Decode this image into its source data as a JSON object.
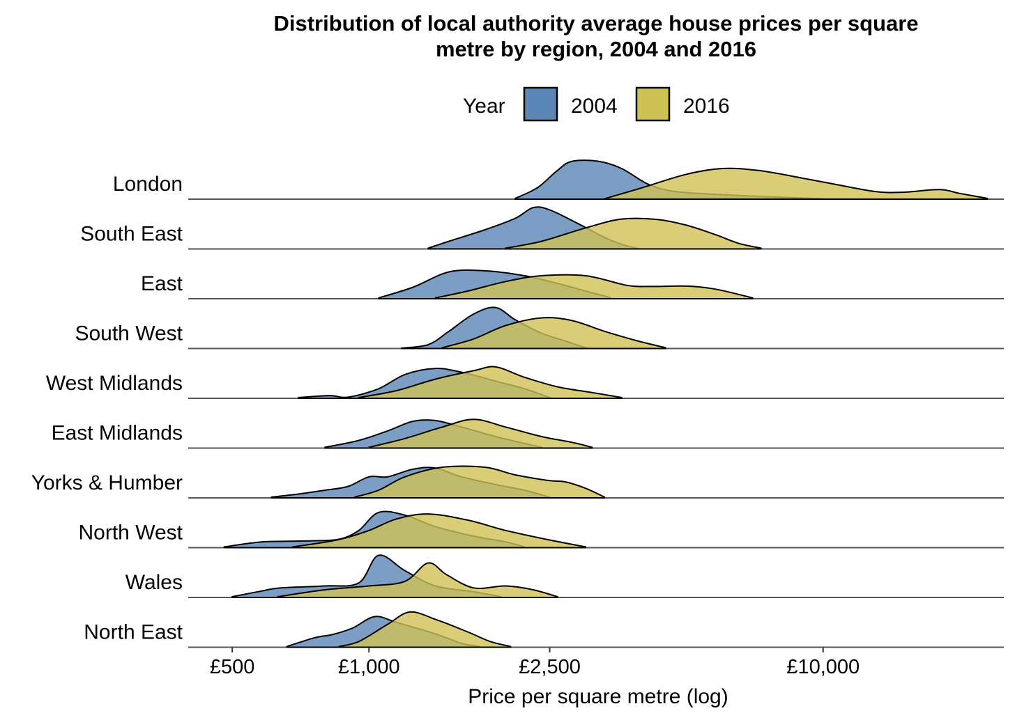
{
  "chart_data": {
    "type": "ridgeline",
    "title": "Distribution of local authority average house prices per square",
    "title_line2": "metre by region, 2004 and 2016",
    "xlabel": "Price per square metre (log)",
    "ylabel": "",
    "x_scale": "log",
    "xlim": [
      400,
      25000
    ],
    "x_ticks": [
      {
        "value": 500,
        "label": "£500"
      },
      {
        "value": 1000,
        "label": "£1,000"
      },
      {
        "value": 2500,
        "label": "£2,500"
      },
      {
        "value": 10000,
        "label": "£10,000"
      }
    ],
    "grid": false,
    "legend": {
      "title": "Year",
      "position": "top",
      "entries": [
        {
          "label": "2004",
          "color": "#5b86b6"
        },
        {
          "label": "2016",
          "color": "#cfc255"
        }
      ]
    },
    "series": [
      {
        "name": "2004",
        "color": "#5b86b6"
      },
      {
        "name": "2016",
        "color": "#cfc255"
      }
    ],
    "categories": [
      "London",
      "South East",
      "East",
      "South West",
      "West Midlands",
      "East Midlands",
      "Yorks & Humber",
      "North West",
      "Wales",
      "North East"
    ],
    "ridges": [
      {
        "region": "London",
        "d2004": [
          [
            2100,
            0.02
          ],
          [
            2350,
            0.3
          ],
          [
            2600,
            0.75
          ],
          [
            2800,
            0.99
          ],
          [
            3200,
            0.99
          ],
          [
            3600,
            0.8
          ],
          [
            4100,
            0.4
          ],
          [
            4600,
            0.22
          ],
          [
            5300,
            0.15
          ],
          [
            7000,
            0.08
          ],
          [
            8500,
            0.04
          ],
          [
            10000,
            0.01
          ]
        ],
        "d2016": [
          [
            3300,
            0.01
          ],
          [
            4000,
            0.3
          ],
          [
            5000,
            0.65
          ],
          [
            6000,
            0.8
          ],
          [
            7200,
            0.75
          ],
          [
            9000,
            0.55
          ],
          [
            10500,
            0.4
          ],
          [
            13000,
            0.2
          ],
          [
            15000,
            0.18
          ],
          [
            18000,
            0.25
          ],
          [
            20000,
            0.15
          ],
          [
            23000,
            0.02
          ]
        ]
      },
      {
        "region": "South East",
        "d2004": [
          [
            1350,
            0.02
          ],
          [
            1500,
            0.2
          ],
          [
            1800,
            0.5
          ],
          [
            2100,
            0.8
          ],
          [
            2300,
            1.08
          ],
          [
            2500,
            1.02
          ],
          [
            2900,
            0.65
          ],
          [
            3300,
            0.3
          ],
          [
            3600,
            0.12
          ],
          [
            3900,
            0.02
          ]
        ],
        "d2016": [
          [
            2000,
            0.02
          ],
          [
            2400,
            0.2
          ],
          [
            3000,
            0.55
          ],
          [
            3600,
            0.78
          ],
          [
            4300,
            0.77
          ],
          [
            5000,
            0.62
          ],
          [
            5800,
            0.37
          ],
          [
            6500,
            0.15
          ],
          [
            7300,
            0.02
          ]
        ]
      },
      {
        "region": "East",
        "d2004": [
          [
            1050,
            0.02
          ],
          [
            1250,
            0.3
          ],
          [
            1500,
            0.7
          ],
          [
            1800,
            0.73
          ],
          [
            2200,
            0.6
          ],
          [
            2600,
            0.4
          ],
          [
            3000,
            0.2
          ],
          [
            3400,
            0.03
          ]
        ],
        "d2016": [
          [
            1400,
            0.02
          ],
          [
            1650,
            0.2
          ],
          [
            2000,
            0.45
          ],
          [
            2400,
            0.6
          ],
          [
            3000,
            0.6
          ],
          [
            3700,
            0.35
          ],
          [
            4200,
            0.32
          ],
          [
            5000,
            0.33
          ],
          [
            5800,
            0.25
          ],
          [
            7000,
            0.02
          ]
        ]
      },
      {
        "region": "South West",
        "d2004": [
          [
            1180,
            0.01
          ],
          [
            1350,
            0.1
          ],
          [
            1500,
            0.45
          ],
          [
            1700,
            0.9
          ],
          [
            1900,
            1.07
          ],
          [
            2100,
            0.75
          ],
          [
            2400,
            0.4
          ],
          [
            2700,
            0.2
          ],
          [
            3000,
            0.02
          ]
        ],
        "d2016": [
          [
            1450,
            0.02
          ],
          [
            1700,
            0.25
          ],
          [
            2000,
            0.6
          ],
          [
            2400,
            0.8
          ],
          [
            2800,
            0.73
          ],
          [
            3300,
            0.45
          ],
          [
            3900,
            0.2
          ],
          [
            4500,
            0.02
          ]
        ]
      },
      {
        "region": "West Midlands",
        "d2004": [
          [
            700,
            0.02
          ],
          [
            820,
            0.07
          ],
          [
            900,
            0.03
          ],
          [
            1050,
            0.25
          ],
          [
            1200,
            0.62
          ],
          [
            1400,
            0.78
          ],
          [
            1600,
            0.68
          ],
          [
            1900,
            0.45
          ],
          [
            2200,
            0.25
          ],
          [
            2500,
            0.02
          ]
        ],
        "d2016": [
          [
            950,
            0.02
          ],
          [
            1150,
            0.2
          ],
          [
            1400,
            0.5
          ],
          [
            1700,
            0.72
          ],
          [
            1900,
            0.82
          ],
          [
            2200,
            0.55
          ],
          [
            2600,
            0.3
          ],
          [
            3100,
            0.15
          ],
          [
            3600,
            0.02
          ]
        ]
      },
      {
        "region": "East Midlands",
        "d2004": [
          [
            800,
            0.02
          ],
          [
            950,
            0.2
          ],
          [
            1100,
            0.45
          ],
          [
            1250,
            0.7
          ],
          [
            1400,
            0.72
          ],
          [
            1600,
            0.55
          ],
          [
            1900,
            0.3
          ],
          [
            2150,
            0.15
          ],
          [
            2400,
            0.02
          ]
        ],
        "d2016": [
          [
            1000,
            0.02
          ],
          [
            1200,
            0.25
          ],
          [
            1450,
            0.55
          ],
          [
            1700,
            0.75
          ],
          [
            2000,
            0.55
          ],
          [
            2400,
            0.3
          ],
          [
            2800,
            0.15
          ],
          [
            3100,
            0.02
          ]
        ]
      },
      {
        "region": "Yorks & Humber",
        "d2004": [
          [
            610,
            0.02
          ],
          [
            700,
            0.1
          ],
          [
            800,
            0.2
          ],
          [
            900,
            0.3
          ],
          [
            1000,
            0.55
          ],
          [
            1100,
            0.55
          ],
          [
            1250,
            0.75
          ],
          [
            1400,
            0.78
          ],
          [
            1600,
            0.55
          ],
          [
            1900,
            0.35
          ],
          [
            2200,
            0.2
          ],
          [
            2500,
            0.02
          ]
        ],
        "d2016": [
          [
            930,
            0.02
          ],
          [
            1050,
            0.2
          ],
          [
            1200,
            0.55
          ],
          [
            1450,
            0.8
          ],
          [
            1800,
            0.8
          ],
          [
            2100,
            0.6
          ],
          [
            2500,
            0.45
          ],
          [
            2700,
            0.42
          ],
          [
            3000,
            0.25
          ],
          [
            3300,
            0.02
          ]
        ]
      },
      {
        "region": "North West",
        "d2004": [
          [
            480,
            0.02
          ],
          [
            550,
            0.12
          ],
          [
            600,
            0.16
          ],
          [
            750,
            0.18
          ],
          [
            860,
            0.22
          ],
          [
            950,
            0.45
          ],
          [
            1050,
            0.92
          ],
          [
            1200,
            0.85
          ],
          [
            1400,
            0.55
          ],
          [
            1700,
            0.3
          ],
          [
            2000,
            0.15
          ],
          [
            2200,
            0.02
          ]
        ],
        "d2016": [
          [
            680,
            0.02
          ],
          [
            850,
            0.2
          ],
          [
            1000,
            0.45
          ],
          [
            1150,
            0.75
          ],
          [
            1350,
            0.88
          ],
          [
            1650,
            0.72
          ],
          [
            2000,
            0.45
          ],
          [
            2500,
            0.2
          ],
          [
            3000,
            0.02
          ]
        ]
      },
      {
        "region": "Wales",
        "d2004": [
          [
            500,
            0.02
          ],
          [
            570,
            0.15
          ],
          [
            640,
            0.25
          ],
          [
            800,
            0.3
          ],
          [
            950,
            0.38
          ],
          [
            1050,
            1.1
          ],
          [
            1200,
            0.7
          ],
          [
            1400,
            0.3
          ],
          [
            1700,
            0.15
          ],
          [
            1950,
            0.02
          ]
        ],
        "d2016": [
          [
            630,
            0.02
          ],
          [
            800,
            0.2
          ],
          [
            1000,
            0.3
          ],
          [
            1200,
            0.42
          ],
          [
            1350,
            0.9
          ],
          [
            1480,
            0.6
          ],
          [
            1700,
            0.25
          ],
          [
            2000,
            0.3
          ],
          [
            2300,
            0.2
          ],
          [
            2600,
            0.02
          ]
        ]
      },
      {
        "region": "North East",
        "d2004": [
          [
            660,
            0.02
          ],
          [
            760,
            0.25
          ],
          [
            830,
            0.33
          ],
          [
            920,
            0.5
          ],
          [
            1030,
            0.8
          ],
          [
            1150,
            0.65
          ],
          [
            1400,
            0.35
          ],
          [
            1600,
            0.1
          ],
          [
            1750,
            0.02
          ]
        ],
        "d2016": [
          [
            860,
            0.02
          ],
          [
            950,
            0.15
          ],
          [
            1100,
            0.6
          ],
          [
            1230,
            0.92
          ],
          [
            1400,
            0.73
          ],
          [
            1650,
            0.4
          ],
          [
            1850,
            0.15
          ],
          [
            2050,
            0.02
          ]
        ]
      }
    ]
  }
}
